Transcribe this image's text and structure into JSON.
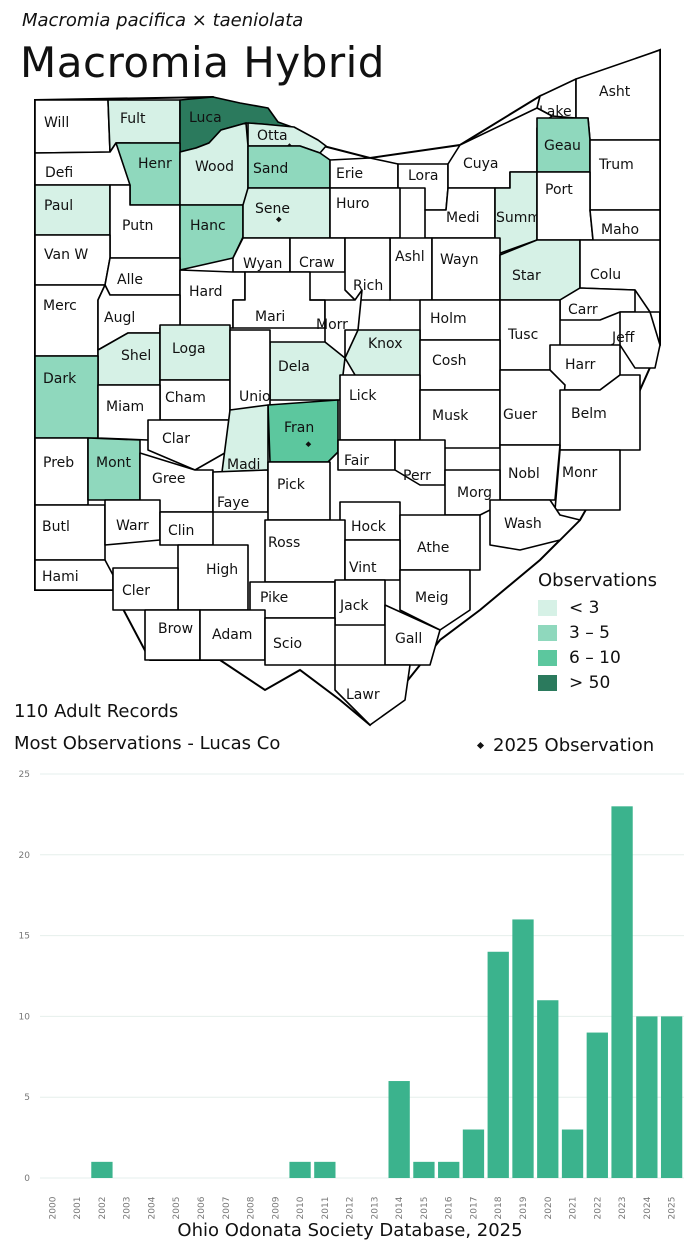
{
  "header": {
    "subtitle": "Macromia pacifica × taeniolata",
    "title": "Macromia Hybrid"
  },
  "colors": {
    "lt3": "#d6f1e6",
    "r3_5": "#8fd8bd",
    "r6_10": "#5cc79e",
    "gt50": "#2b7a5d",
    "none": "#ffffff",
    "bar": "#3bb38d"
  },
  "legend": {
    "title": "Observations",
    "items": [
      {
        "label": "< 3",
        "color": "#d6f1e6"
      },
      {
        "label": "3 – 5",
        "color": "#8fd8bd"
      },
      {
        "label": "6 – 10",
        "color": "#5cc79e"
      },
      {
        "label": "> 50",
        "color": "#2b7a5d"
      }
    ]
  },
  "map": {
    "counties": [
      {
        "name": "Will",
        "level": "none",
        "obs2025": false
      },
      {
        "name": "Fult",
        "level": "lt3",
        "obs2025": false
      },
      {
        "name": "Luca",
        "level": "gt50",
        "obs2025": true
      },
      {
        "name": "Otta",
        "level": "lt3",
        "obs2025": true
      },
      {
        "name": "Lake",
        "level": "none",
        "obs2025": false
      },
      {
        "name": "Asht",
        "level": "none",
        "obs2025": false
      },
      {
        "name": "Defi",
        "level": "none",
        "obs2025": false
      },
      {
        "name": "Henr",
        "level": "r3_5",
        "obs2025": false
      },
      {
        "name": "Wood",
        "level": "lt3",
        "obs2025": false
      },
      {
        "name": "Sand",
        "level": "r3_5",
        "obs2025": false
      },
      {
        "name": "Erie",
        "level": "none",
        "obs2025": false
      },
      {
        "name": "Lora",
        "level": "none",
        "obs2025": false
      },
      {
        "name": "Cuya",
        "level": "none",
        "obs2025": false
      },
      {
        "name": "Geau",
        "level": "r3_5",
        "obs2025": false
      },
      {
        "name": "Trum",
        "level": "none",
        "obs2025": false
      },
      {
        "name": "Paul",
        "level": "lt3",
        "obs2025": false
      },
      {
        "name": "Putn",
        "level": "none",
        "obs2025": false
      },
      {
        "name": "Hanc",
        "level": "r3_5",
        "obs2025": false
      },
      {
        "name": "Sene",
        "level": "lt3",
        "obs2025": true
      },
      {
        "name": "Huro",
        "level": "none",
        "obs2025": false
      },
      {
        "name": "Medi",
        "level": "none",
        "obs2025": false
      },
      {
        "name": "Summ",
        "level": "lt3",
        "obs2025": false
      },
      {
        "name": "Port",
        "level": "none",
        "obs2025": false
      },
      {
        "name": "Maho",
        "level": "none",
        "obs2025": false
      },
      {
        "name": "Van W",
        "level": "none",
        "obs2025": false
      },
      {
        "name": "Alle",
        "level": "none",
        "obs2025": false
      },
      {
        "name": "Wyan",
        "level": "none",
        "obs2025": false
      },
      {
        "name": "Craw",
        "level": "none",
        "obs2025": false
      },
      {
        "name": "Ashl",
        "level": "none",
        "obs2025": false
      },
      {
        "name": "Wayn",
        "level": "none",
        "obs2025": false
      },
      {
        "name": "Star",
        "level": "lt3",
        "obs2025": false
      },
      {
        "name": "Colu",
        "level": "none",
        "obs2025": false
      },
      {
        "name": "Hard",
        "level": "none",
        "obs2025": false
      },
      {
        "name": "Rich",
        "level": "none",
        "obs2025": false
      },
      {
        "name": "Merc",
        "level": "none",
        "obs2025": false
      },
      {
        "name": "Augl",
        "level": "none",
        "obs2025": false
      },
      {
        "name": "Mari",
        "level": "none",
        "obs2025": false
      },
      {
        "name": "Morr",
        "level": "none",
        "obs2025": false
      },
      {
        "name": "Holm",
        "level": "none",
        "obs2025": false
      },
      {
        "name": "Carr",
        "level": "none",
        "obs2025": false
      },
      {
        "name": "Tusc",
        "level": "none",
        "obs2025": false
      },
      {
        "name": "Jeff",
        "level": "none",
        "obs2025": false
      },
      {
        "name": "Shel",
        "level": "lt3",
        "obs2025": false
      },
      {
        "name": "Loga",
        "level": "lt3",
        "obs2025": false
      },
      {
        "name": "Knox",
        "level": "lt3",
        "obs2025": false
      },
      {
        "name": "Dela",
        "level": "lt3",
        "obs2025": false
      },
      {
        "name": "Cosh",
        "level": "none",
        "obs2025": false
      },
      {
        "name": "Harr",
        "level": "none",
        "obs2025": false
      },
      {
        "name": "Dark",
        "level": "r3_5",
        "obs2025": false
      },
      {
        "name": "Cham",
        "level": "none",
        "obs2025": false
      },
      {
        "name": "Unio",
        "level": "none",
        "obs2025": false
      },
      {
        "name": "Lick",
        "level": "none",
        "obs2025": false
      },
      {
        "name": "Miam",
        "level": "none",
        "obs2025": false
      },
      {
        "name": "Musk",
        "level": "none",
        "obs2025": false
      },
      {
        "name": "Guer",
        "level": "none",
        "obs2025": false
      },
      {
        "name": "Belm",
        "level": "none",
        "obs2025": false
      },
      {
        "name": "Clar",
        "level": "none",
        "obs2025": false
      },
      {
        "name": "Fran",
        "level": "r6_10",
        "obs2025": true
      },
      {
        "name": "Preb",
        "level": "none",
        "obs2025": false
      },
      {
        "name": "Mont",
        "level": "r3_5",
        "obs2025": false
      },
      {
        "name": "Gree",
        "level": "none",
        "obs2025": false
      },
      {
        "name": "Madi",
        "level": "lt3",
        "obs2025": false
      },
      {
        "name": "Fair",
        "level": "none",
        "obs2025": false
      },
      {
        "name": "Perr",
        "level": "none",
        "obs2025": false
      },
      {
        "name": "Nobl",
        "level": "none",
        "obs2025": false
      },
      {
        "name": "Monr",
        "level": "none",
        "obs2025": false
      },
      {
        "name": "Faye",
        "level": "none",
        "obs2025": false
      },
      {
        "name": "Pick",
        "level": "none",
        "obs2025": false
      },
      {
        "name": "Morg",
        "level": "none",
        "obs2025": false
      },
      {
        "name": "Butl",
        "level": "none",
        "obs2025": false
      },
      {
        "name": "Warr",
        "level": "none",
        "obs2025": false
      },
      {
        "name": "Clin",
        "level": "none",
        "obs2025": false
      },
      {
        "name": "Hock",
        "level": "none",
        "obs2025": false
      },
      {
        "name": "Wash",
        "level": "none",
        "obs2025": false
      },
      {
        "name": "Ross",
        "level": "none",
        "obs2025": false
      },
      {
        "name": "Athe",
        "level": "none",
        "obs2025": false
      },
      {
        "name": "Hami",
        "level": "none",
        "obs2025": false
      },
      {
        "name": "High",
        "level": "none",
        "obs2025": false
      },
      {
        "name": "Vint",
        "level": "none",
        "obs2025": false
      },
      {
        "name": "Cler",
        "level": "none",
        "obs2025": false
      },
      {
        "name": "Pike",
        "level": "none",
        "obs2025": false
      },
      {
        "name": "Jack",
        "level": "none",
        "obs2025": false
      },
      {
        "name": "Meig",
        "level": "none",
        "obs2025": false
      },
      {
        "name": "Brow",
        "level": "none",
        "obs2025": false
      },
      {
        "name": "Adam",
        "level": "none",
        "obs2025": false
      },
      {
        "name": "Scio",
        "level": "none",
        "obs2025": false
      },
      {
        "name": "Gall",
        "level": "none",
        "obs2025": false
      },
      {
        "name": "Lawr",
        "level": "none",
        "obs2025": false
      }
    ]
  },
  "stats": {
    "records": "110 Adult Records",
    "most": "Most Observations - Lucas Co",
    "note2025": "2025  Observation"
  },
  "chart_data": {
    "type": "bar",
    "categories": [
      "2000",
      "2001",
      "2002",
      "2003",
      "2004",
      "2005",
      "2006",
      "2007",
      "2008",
      "2009",
      "2010",
      "2011",
      "2012",
      "2013",
      "2014",
      "2015",
      "2016",
      "2017",
      "2018",
      "2019",
      "2020",
      "2021",
      "2022",
      "2023",
      "2024",
      "2025"
    ],
    "values": [
      0,
      0,
      1,
      0,
      0,
      0,
      0,
      0,
      0,
      0,
      1,
      1,
      0,
      0,
      6,
      1,
      1,
      3,
      14,
      16,
      11,
      3,
      9,
      23,
      10,
      10
    ],
    "ylim": [
      0,
      25
    ],
    "yticks": [
      0,
      5,
      10,
      15,
      20,
      25
    ],
    "grid": true,
    "xlabel": "",
    "ylabel": ""
  },
  "footer": {
    "source": "Ohio Odonata Society Database, 2025"
  }
}
